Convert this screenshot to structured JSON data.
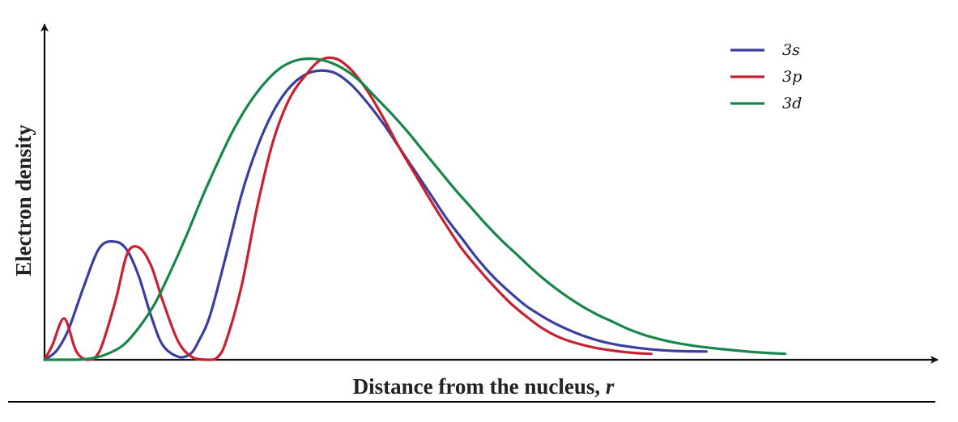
{
  "chart_data": {
    "type": "line",
    "title": "",
    "xlabel_main": "Distance from the nucleus, ",
    "xlabel_var": "r",
    "ylabel": "Electron density",
    "xlim": [
      0,
      100
    ],
    "ylim": [
      0,
      100
    ],
    "grid": false,
    "legend_position": "top-right",
    "colors": {
      "axis": "#111111",
      "rule": "#000000"
    },
    "series": [
      {
        "name": "3s",
        "color": "#3a3f9f",
        "x": [
          0,
          1.5,
          3,
          5,
          7,
          9,
          10.5,
          12,
          13.5,
          15,
          17,
          18.5,
          19.5,
          21,
          23,
          25,
          27,
          29,
          31,
          33,
          35,
          37,
          39,
          41,
          43,
          45,
          47,
          49,
          51,
          53,
          55,
          57,
          59,
          61,
          63,
          65,
          68,
          71,
          74,
          77,
          80,
          84
        ],
        "y": [
          0,
          3,
          10,
          25,
          38,
          40,
          37,
          28,
          15,
          5,
          1,
          2,
          6,
          15,
          35,
          56,
          72,
          84,
          92,
          96.5,
          98,
          97,
          93,
          87,
          80,
          72,
          64,
          56,
          48,
          41,
          34,
          28,
          23,
          18.5,
          15,
          12,
          8.5,
          6,
          4.5,
          3.5,
          3,
          2.8
        ]
      },
      {
        "name": "3p",
        "color": "#c8202e",
        "x": [
          0,
          1,
          2.5,
          4,
          5.5,
          7,
          9,
          10.5,
          12,
          13.5,
          15,
          17,
          19,
          21,
          22,
          23,
          25,
          27,
          29,
          31,
          33,
          35,
          37,
          39,
          41,
          43,
          45,
          47,
          49,
          51,
          53,
          55,
          57,
          59,
          61,
          63,
          65,
          67,
          70,
          74,
          77
        ],
        "y": [
          0,
          5,
          14,
          3,
          0,
          3,
          20,
          36,
          38,
          32,
          20,
          6,
          0.5,
          0,
          1,
          6,
          25,
          52,
          74,
          88,
          96,
          101.5,
          102,
          98,
          91,
          82,
          72,
          63,
          54,
          45.5,
          37.5,
          31,
          25,
          19.5,
          15,
          11,
          8,
          6,
          4,
          2.5,
          2
        ]
      },
      {
        "name": "3d",
        "color": "#16864a",
        "x": [
          0,
          4,
          6,
          8,
          10,
          12,
          14,
          16,
          18,
          20,
          22,
          24,
          26,
          28,
          30,
          32,
          34,
          36,
          38,
          40,
          42,
          44,
          46,
          48,
          50,
          52,
          54,
          56,
          58,
          60,
          62,
          64,
          66,
          68,
          70,
          72,
          74,
          76,
          78,
          80,
          83,
          86,
          90,
          94
        ],
        "y": [
          0,
          0,
          0.5,
          2,
          5,
          11,
          19,
          30,
          42,
          55,
          67,
          78,
          87,
          94,
          99,
          101.5,
          102,
          101,
          98.5,
          94.5,
          89,
          83.5,
          77.5,
          71,
          64.5,
          58,
          52,
          46,
          40.5,
          35.5,
          30.5,
          26,
          22,
          18.5,
          15.5,
          13,
          10.5,
          8.5,
          7,
          5.8,
          4.5,
          3.6,
          2.6,
          2
        ]
      }
    ]
  }
}
